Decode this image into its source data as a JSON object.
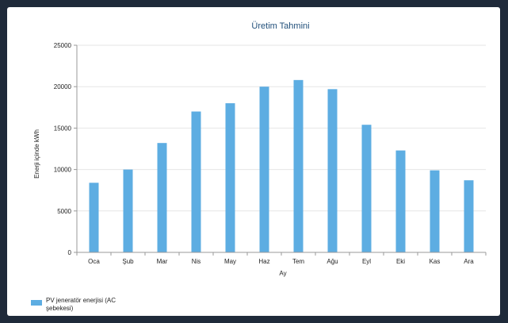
{
  "chart_data": {
    "type": "bar",
    "title": "Üretim Tahmini",
    "xlabel": "Ay",
    "ylabel": "Enerji içinde kWh",
    "categories": [
      "Oca",
      "Şub",
      "Mar",
      "Nis",
      "May",
      "Haz",
      "Tem",
      "Ağu",
      "Eyl",
      "Eki",
      "Kas",
      "Ara"
    ],
    "series": [
      {
        "name": "PV jeneratör enerjisi (AC şebekesi)",
        "values": [
          8400,
          10000,
          13200,
          17000,
          18000,
          20000,
          20800,
          19700,
          15400,
          12300,
          9900,
          8700
        ]
      }
    ],
    "ylim": [
      0,
      25000
    ],
    "yticks": [
      "0",
      "5000",
      "10000",
      "15000",
      "20000",
      "25000"
    ],
    "grid": true,
    "legend_position": "bottom-left",
    "colors": {
      "bar": "#5dade2",
      "title": "#1f4e79",
      "grid": "#e6e6e6",
      "axis": "#999999"
    }
  }
}
